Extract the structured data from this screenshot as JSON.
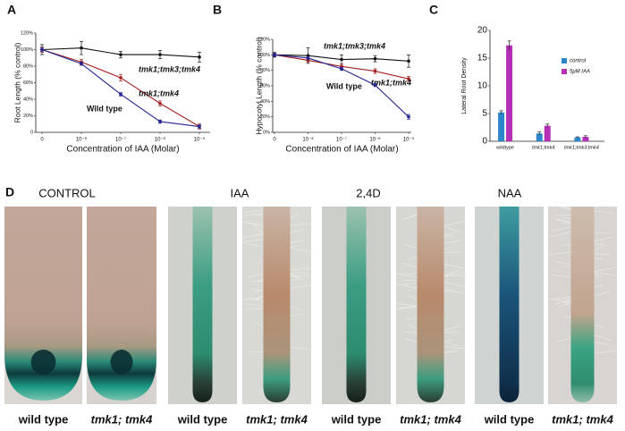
{
  "chart_data": [
    {
      "type": "line",
      "panel": "A",
      "xlabel": "Concentration of IAA (Molar)",
      "ylabel": "Root Length (% control)",
      "categories": [
        "0",
        "10⁻⁸",
        "10⁻⁷",
        "10⁻⁶",
        "10⁻⁵"
      ],
      "ylim": [
        0,
        120
      ],
      "yticks": [
        0,
        {
          "value": 20,
          "label": "20%"
        },
        {
          "value": 40,
          "label": "40%"
        },
        {
          "value": 60,
          "label": "60%"
        },
        {
          "value": 80,
          "label": "80%"
        },
        {
          "value": 100,
          "label": "100%"
        },
        {
          "value": 120,
          "label": "120%"
        }
      ],
      "series": [
        {
          "name": "tmk1;tmk3;tmk4",
          "color": "#111111",
          "values": [
            100,
            102,
            94,
            94,
            91
          ],
          "errors": [
            6,
            8,
            4,
            5,
            6
          ]
        },
        {
          "name": "tmk1;tmk4",
          "color": "#a32020",
          "values": [
            100,
            85,
            66,
            35,
            7
          ],
          "errors": [
            3,
            3,
            4,
            3,
            3
          ]
        },
        {
          "name": "Wild type",
          "color": "#25258f",
          "values": [
            100,
            83,
            46,
            13,
            7
          ],
          "errors": [
            2,
            2,
            2,
            2,
            2
          ]
        }
      ]
    },
    {
      "type": "line",
      "panel": "B",
      "xlabel": "Concentration of IAA (Molar)",
      "ylabel": "Hypocotyl Length (% control)",
      "categories": [
        "0",
        "10⁻⁸",
        "10⁻⁷",
        "10⁻⁶",
        "10⁻⁵"
      ],
      "ylim": [
        0,
        120
      ],
      "yticks": [
        {
          "value": 0,
          "label": "0%"
        },
        {
          "value": 20,
          "label": "20%"
        },
        {
          "value": 40,
          "label": "40%"
        },
        {
          "value": 60,
          "label": "60%"
        },
        {
          "value": 80,
          "label": "80%"
        },
        {
          "value": 100,
          "label": "100%"
        },
        {
          "value": 120,
          "label": "120%"
        }
      ],
      "series": [
        {
          "name": "tmk1;tmk3;tmk4",
          "color": "#111111",
          "values": [
            100,
            99,
            94,
            95,
            92
          ],
          "errors": [
            3,
            10,
            6,
            4,
            8
          ]
        },
        {
          "name": "tmk1;tmk4",
          "color": "#a32020",
          "values": [
            100,
            93,
            85,
            79,
            69
          ],
          "errors": [
            2,
            2,
            3,
            3,
            3
          ]
        },
        {
          "name": "Wild type",
          "color": "#25258f",
          "values": [
            100,
            96,
            82,
            61,
            20
          ],
          "errors": [
            2,
            2,
            2,
            2,
            3
          ]
        }
      ]
    },
    {
      "type": "bar",
      "panel": "C",
      "ylabel": "Lateral Root Density",
      "categories": [
        "wildtype",
        "tmk1;tmk4",
        "tmk1;tmk3;tmk4"
      ],
      "ylim": [
        0,
        20
      ],
      "yticks": [
        0,
        5,
        10,
        15,
        20
      ],
      "series": [
        {
          "name": "control",
          "color": "#2c86c9",
          "values": [
            5.2,
            1.4,
            0.7
          ],
          "errors": [
            0.3,
            0.3,
            0.1
          ]
        },
        {
          "name": "5μM IAA",
          "color": "#b630b6",
          "values": [
            17.3,
            2.8,
            0.8
          ],
          "errors": [
            0.8,
            0.3,
            0.2
          ]
        }
      ]
    }
  ],
  "figure_d": {
    "panel": "D",
    "groups": [
      {
        "title": "CONTROL",
        "captions": [
          "wild type",
          "tmk1; tmk4"
        ]
      },
      {
        "title": "IAA",
        "captions": [
          "wild type",
          "tmk1; tmk4"
        ]
      },
      {
        "title": "2,4D",
        "captions": [
          "wild type",
          "tmk1; tmk4"
        ]
      },
      {
        "title": "NAA",
        "captions": [
          "wild type",
          "tmk1; tmk4"
        ]
      }
    ]
  }
}
